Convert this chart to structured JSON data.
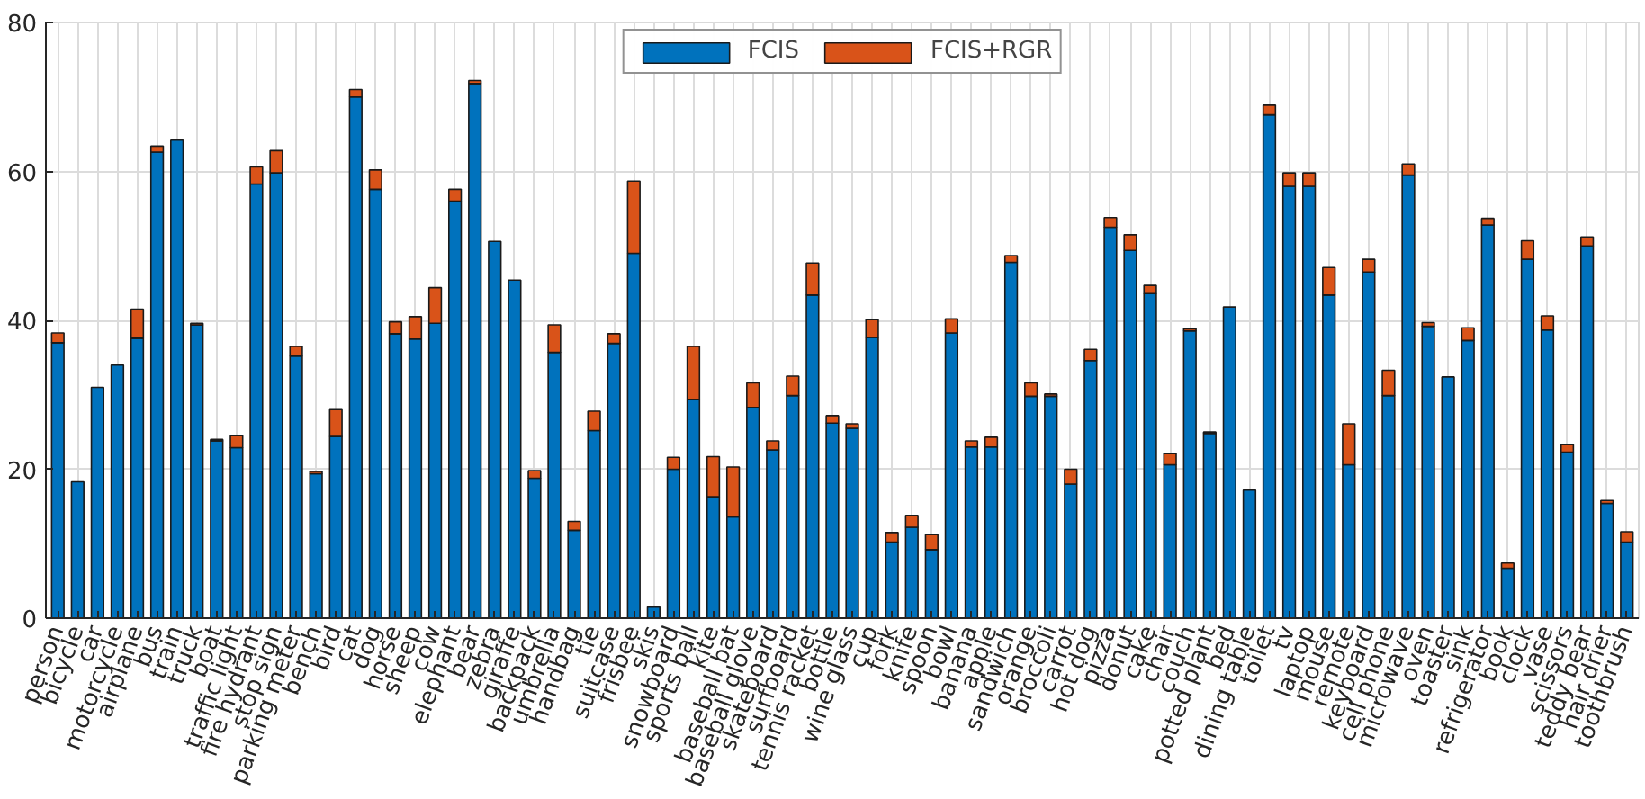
{
  "chart_data": {
    "type": "bar",
    "stacked": true,
    "categories": [
      "person",
      "bicycle",
      "car",
      "motorcycle",
      "airplane",
      "bus",
      "train",
      "truck",
      "boat",
      "traffic light",
      "fire hydrant",
      "stop sign",
      "parking meter",
      "bench",
      "bird",
      "cat",
      "dog",
      "horse",
      "sheep",
      "cow",
      "elephant",
      "bear",
      "zebra",
      "giraffe",
      "backpack",
      "umbrella",
      "handbag",
      "tie",
      "suitcase",
      "frisbee",
      "skis",
      "snowboard",
      "sports ball",
      "kite",
      "baseball bat",
      "baseball glove",
      "skateboard",
      "surfboard",
      "tennis racket",
      "bottle",
      "wine glass",
      "cup",
      "fork",
      "knife",
      "spoon",
      "bowl",
      "banana",
      "apple",
      "sandwich",
      "orange",
      "broccoli",
      "carrot",
      "hot dog",
      "pizza",
      "donut",
      "cake",
      "chair",
      "couch",
      "potted plant",
      "bed",
      "dining table",
      "toilet",
      "tv",
      "laptop",
      "mouse",
      "remote",
      "keyboard",
      "cell phone",
      "microwave",
      "oven",
      "toaster",
      "sink",
      "refrigerator",
      "book",
      "clock",
      "vase",
      "scissors",
      "teddy bear",
      "hair drier",
      "toothbrush"
    ],
    "series": [
      {
        "name": "FCIS",
        "color": "#0072bd",
        "values": [
          37,
          18.3,
          31,
          34,
          37.6,
          62.6,
          64.2,
          39.4,
          23.8,
          22.9,
          58.3,
          59.8,
          35.2,
          19.4,
          24.4,
          70,
          57.6,
          38.2,
          37.5,
          39.6,
          56,
          71.8,
          50.6,
          45.4,
          18.8,
          35.7,
          11.8,
          25.2,
          36.9,
          49,
          1.5,
          20,
          29.4,
          16.3,
          13.6,
          28.3,
          22.6,
          29.9,
          43.4,
          26.2,
          25.5,
          37.7,
          10.2,
          12.2,
          9.2,
          38.3,
          23,
          23,
          47.8,
          29.8,
          29.8,
          18,
          34.6,
          52.5,
          49.4,
          43.6,
          20.6,
          38.6,
          24.8,
          41.8,
          17.2,
          67.6,
          58,
          58,
          43.4,
          20.6,
          46.5,
          29.9,
          59.5,
          39.2,
          32.4,
          37.3,
          52.8,
          6.7,
          48.2,
          38.7,
          22.3,
          50,
          15.4,
          10.2
        ]
      },
      {
        "name": "FCIS+RGR",
        "color": "#d95319",
        "values": [
          1.3,
          0,
          0,
          0,
          3.9,
          0.8,
          0,
          0.2,
          0.2,
          1.6,
          2.3,
          3,
          1.3,
          0.3,
          3.6,
          1,
          2.6,
          1.6,
          3,
          4.8,
          1.6,
          0.4,
          0,
          0,
          1,
          3.7,
          1.2,
          2.6,
          1.3,
          9.7,
          0,
          1.6,
          7.1,
          5.4,
          6.7,
          3.3,
          1.2,
          2.6,
          4.3,
          1,
          0.6,
          2.4,
          1.3,
          1.6,
          2,
          1.9,
          0.8,
          1.3,
          0.9,
          1.8,
          0.3,
          2,
          1.5,
          1.3,
          2.1,
          1.1,
          1.5,
          0.3,
          0.2,
          0,
          0,
          1.3,
          1.8,
          1.8,
          3.7,
          5.5,
          1.7,
          3.4,
          1.5,
          0.5,
          0,
          1.7,
          0.9,
          0.7,
          2.5,
          1.9,
          1,
          1.2,
          0.4,
          1.4
        ]
      }
    ],
    "ylim": [
      0,
      80
    ],
    "yticks": [
      0,
      20,
      40,
      60,
      80
    ],
    "grid": true,
    "legend": "top"
  }
}
